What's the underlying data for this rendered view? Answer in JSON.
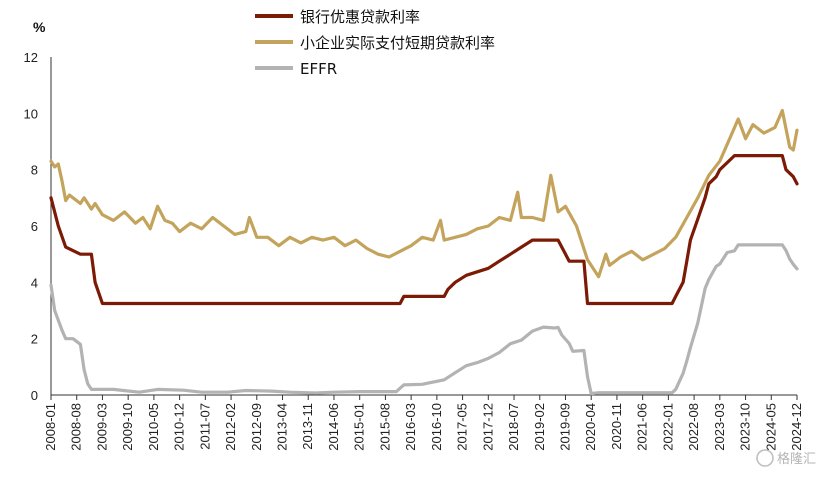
{
  "chart_data": {
    "type": "line",
    "ylabel": "%",
    "ylim": [
      0,
      12
    ],
    "yticks": [
      0,
      2,
      4,
      6,
      8,
      10,
      12
    ],
    "xlim": [
      "2008-01",
      "2024-12"
    ],
    "xticks": [
      "2008-01",
      "2008-08",
      "2009-03",
      "2009-10",
      "2010-05",
      "2010-12",
      "2011-07",
      "2012-02",
      "2012-09",
      "2013-04",
      "2013-11",
      "2014-06",
      "2015-01",
      "2015-08",
      "2016-03",
      "2016-10",
      "2017-05",
      "2017-12",
      "2018-07",
      "2019-02",
      "2019-09",
      "2020-04",
      "2020-11",
      "2021-06",
      "2022-01",
      "2022-08",
      "2023-03",
      "2023-10",
      "2024-05",
      "2024-12"
    ],
    "grid": false,
    "legend_position": "top-center",
    "series": [
      {
        "name": "银行优惠贷款利率",
        "color": "#7b1a05",
        "points": [
          [
            "2008-01",
            7.0
          ],
          [
            "2008-03",
            6.0
          ],
          [
            "2008-05",
            5.25
          ],
          [
            "2008-09",
            5.0
          ],
          [
            "2008-12",
            5.0
          ],
          [
            "2009-01",
            4.0
          ],
          [
            "2009-03",
            3.25
          ],
          [
            "2015-12",
            3.25
          ],
          [
            "2016-01",
            3.5
          ],
          [
            "2016-12",
            3.5
          ],
          [
            "2017-01",
            3.75
          ],
          [
            "2017-03",
            4.0
          ],
          [
            "2017-06",
            4.25
          ],
          [
            "2017-12",
            4.5
          ],
          [
            "2018-03",
            4.75
          ],
          [
            "2018-06",
            5.0
          ],
          [
            "2018-09",
            5.25
          ],
          [
            "2018-12",
            5.5
          ],
          [
            "2019-07",
            5.5
          ],
          [
            "2019-08",
            5.25
          ],
          [
            "2019-10",
            4.75
          ],
          [
            "2020-02",
            4.75
          ],
          [
            "2020-03",
            3.25
          ],
          [
            "2022-02",
            3.25
          ],
          [
            "2022-03",
            3.5
          ],
          [
            "2022-05",
            4.0
          ],
          [
            "2022-06",
            4.75
          ],
          [
            "2022-07",
            5.5
          ],
          [
            "2022-09",
            6.25
          ],
          [
            "2022-11",
            7.0
          ],
          [
            "2022-12",
            7.5
          ],
          [
            "2023-02",
            7.75
          ],
          [
            "2023-03",
            8.0
          ],
          [
            "2023-05",
            8.25
          ],
          [
            "2023-07",
            8.5
          ],
          [
            "2024-08",
            8.5
          ],
          [
            "2024-09",
            8.0
          ],
          [
            "2024-11",
            7.75
          ],
          [
            "2024-12",
            7.5
          ]
        ]
      },
      {
        "name": "小企业实际支付短期贷款利率",
        "color": "#c4a45c",
        "points": [
          [
            "2008-01",
            8.3
          ],
          [
            "2008-02",
            8.1
          ],
          [
            "2008-03",
            8.2
          ],
          [
            "2008-04",
            7.6
          ],
          [
            "2008-05",
            6.9
          ],
          [
            "2008-06",
            7.1
          ],
          [
            "2008-07",
            7.0
          ],
          [
            "2008-09",
            6.8
          ],
          [
            "2008-10",
            7.0
          ],
          [
            "2008-12",
            6.6
          ],
          [
            "2009-01",
            6.8
          ],
          [
            "2009-03",
            6.4
          ],
          [
            "2009-06",
            6.2
          ],
          [
            "2009-09",
            6.5
          ],
          [
            "2009-12",
            6.1
          ],
          [
            "2010-02",
            6.3
          ],
          [
            "2010-04",
            5.9
          ],
          [
            "2010-06",
            6.7
          ],
          [
            "2010-08",
            6.2
          ],
          [
            "2010-10",
            6.1
          ],
          [
            "2010-12",
            5.8
          ],
          [
            "2011-03",
            6.1
          ],
          [
            "2011-06",
            5.9
          ],
          [
            "2011-09",
            6.3
          ],
          [
            "2011-12",
            6.0
          ],
          [
            "2012-03",
            5.7
          ],
          [
            "2012-06",
            5.8
          ],
          [
            "2012-07",
            6.3
          ],
          [
            "2012-09",
            5.6
          ],
          [
            "2012-12",
            5.6
          ],
          [
            "2013-03",
            5.3
          ],
          [
            "2013-06",
            5.6
          ],
          [
            "2013-09",
            5.4
          ],
          [
            "2013-12",
            5.6
          ],
          [
            "2014-03",
            5.5
          ],
          [
            "2014-06",
            5.6
          ],
          [
            "2014-09",
            5.3
          ],
          [
            "2014-12",
            5.5
          ],
          [
            "2015-03",
            5.2
          ],
          [
            "2015-06",
            5.0
          ],
          [
            "2015-09",
            4.9
          ],
          [
            "2015-12",
            5.1
          ],
          [
            "2016-03",
            5.3
          ],
          [
            "2016-06",
            5.6
          ],
          [
            "2016-09",
            5.5
          ],
          [
            "2016-11",
            6.2
          ],
          [
            "2016-12",
            5.5
          ],
          [
            "2017-03",
            5.6
          ],
          [
            "2017-06",
            5.7
          ],
          [
            "2017-09",
            5.9
          ],
          [
            "2017-12",
            6.0
          ],
          [
            "2018-03",
            6.3
          ],
          [
            "2018-06",
            6.2
          ],
          [
            "2018-08",
            7.2
          ],
          [
            "2018-09",
            6.3
          ],
          [
            "2018-12",
            6.3
          ],
          [
            "2019-03",
            6.2
          ],
          [
            "2019-05",
            7.8
          ],
          [
            "2019-07",
            6.5
          ],
          [
            "2019-09",
            6.7
          ],
          [
            "2019-12",
            6.0
          ],
          [
            "2020-03",
            4.8
          ],
          [
            "2020-06",
            4.2
          ],
          [
            "2020-08",
            5.0
          ],
          [
            "2020-09",
            4.6
          ],
          [
            "2020-12",
            4.9
          ],
          [
            "2021-03",
            5.1
          ],
          [
            "2021-06",
            4.8
          ],
          [
            "2021-09",
            5.0
          ],
          [
            "2021-12",
            5.2
          ],
          [
            "2022-03",
            5.6
          ],
          [
            "2022-06",
            6.3
          ],
          [
            "2022-09",
            7.0
          ],
          [
            "2022-12",
            7.8
          ],
          [
            "2023-03",
            8.3
          ],
          [
            "2023-06",
            9.2
          ],
          [
            "2023-08",
            9.8
          ],
          [
            "2023-10",
            9.1
          ],
          [
            "2023-12",
            9.6
          ],
          [
            "2024-03",
            9.3
          ],
          [
            "2024-06",
            9.5
          ],
          [
            "2024-08",
            10.1
          ],
          [
            "2024-10",
            8.8
          ],
          [
            "2024-11",
            8.7
          ],
          [
            "2024-12",
            9.4
          ]
        ]
      },
      {
        "name": "EFFR",
        "color": "#b3b3b3",
        "points": [
          [
            "2008-01",
            3.9
          ],
          [
            "2008-02",
            3.0
          ],
          [
            "2008-04",
            2.3
          ],
          [
            "2008-05",
            2.0
          ],
          [
            "2008-07",
            2.0
          ],
          [
            "2008-09",
            1.8
          ],
          [
            "2008-10",
            0.9
          ],
          [
            "2008-11",
            0.4
          ],
          [
            "2008-12",
            0.2
          ],
          [
            "2009-03",
            0.2
          ],
          [
            "2009-06",
            0.2
          ],
          [
            "2010-01",
            0.1
          ],
          [
            "2010-06",
            0.2
          ],
          [
            "2011-01",
            0.17
          ],
          [
            "2011-06",
            0.1
          ],
          [
            "2012-01",
            0.1
          ],
          [
            "2012-06",
            0.16
          ],
          [
            "2013-01",
            0.14
          ],
          [
            "2013-06",
            0.1
          ],
          [
            "2014-01",
            0.07
          ],
          [
            "2014-06",
            0.1
          ],
          [
            "2015-01",
            0.12
          ],
          [
            "2015-11",
            0.12
          ],
          [
            "2015-12",
            0.24
          ],
          [
            "2016-01",
            0.36
          ],
          [
            "2016-06",
            0.38
          ],
          [
            "2016-12",
            0.54
          ],
          [
            "2017-03",
            0.79
          ],
          [
            "2017-06",
            1.04
          ],
          [
            "2017-09",
            1.15
          ],
          [
            "2017-12",
            1.3
          ],
          [
            "2018-03",
            1.51
          ],
          [
            "2018-06",
            1.82
          ],
          [
            "2018-09",
            1.95
          ],
          [
            "2018-12",
            2.27
          ],
          [
            "2019-03",
            2.41
          ],
          [
            "2019-06",
            2.38
          ],
          [
            "2019-07",
            2.4
          ],
          [
            "2019-08",
            2.13
          ],
          [
            "2019-10",
            1.83
          ],
          [
            "2019-11",
            1.55
          ],
          [
            "2020-02",
            1.58
          ],
          [
            "2020-03",
            0.65
          ],
          [
            "2020-04",
            0.05
          ],
          [
            "2020-06",
            0.08
          ],
          [
            "2021-06",
            0.08
          ],
          [
            "2022-02",
            0.08
          ],
          [
            "2022-03",
            0.2
          ],
          [
            "2022-05",
            0.77
          ],
          [
            "2022-06",
            1.21
          ],
          [
            "2022-07",
            1.68
          ],
          [
            "2022-09",
            2.56
          ],
          [
            "2022-11",
            3.78
          ],
          [
            "2022-12",
            4.1
          ],
          [
            "2023-02",
            4.57
          ],
          [
            "2023-03",
            4.65
          ],
          [
            "2023-05",
            5.06
          ],
          [
            "2023-07",
            5.12
          ],
          [
            "2023-08",
            5.33
          ],
          [
            "2024-08",
            5.33
          ],
          [
            "2024-09",
            5.13
          ],
          [
            "2024-10",
            4.83
          ],
          [
            "2024-11",
            4.64
          ],
          [
            "2024-12",
            4.48
          ]
        ]
      }
    ]
  },
  "watermark": {
    "text": "格隆汇"
  }
}
